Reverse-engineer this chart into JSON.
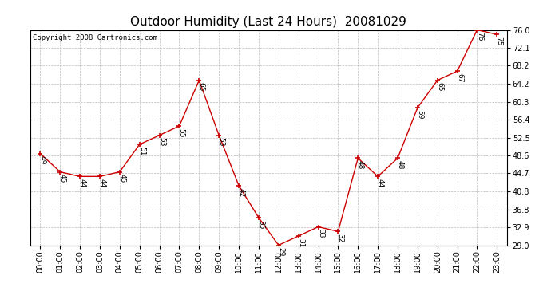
{
  "title": "Outdoor Humidity (Last 24 Hours)  20081029",
  "copyright": "Copyright 2008 Cartronics.com",
  "hours": [
    "00:00",
    "01:00",
    "02:00",
    "03:00",
    "04:00",
    "05:00",
    "06:00",
    "07:00",
    "08:00",
    "09:00",
    "10:00",
    "11:00",
    "12:00",
    "13:00",
    "14:00",
    "15:00",
    "16:00",
    "17:00",
    "18:00",
    "19:00",
    "20:00",
    "21:00",
    "22:00",
    "23:00"
  ],
  "values": [
    49,
    45,
    44,
    44,
    45,
    51,
    53,
    55,
    65,
    53,
    42,
    35,
    29,
    31,
    33,
    32,
    48,
    44,
    48,
    59,
    65,
    67,
    76,
    75
  ],
  "line_color": "#cc0000",
  "marker_color": "#cc0000",
  "background_color": "#ffffff",
  "grid_color": "#bbbbbb",
  "ylim_min": 29.0,
  "ylim_max": 76.0,
  "yticks": [
    29.0,
    32.9,
    36.8,
    40.8,
    44.7,
    48.6,
    52.5,
    56.4,
    60.3,
    64.2,
    68.2,
    72.1,
    76.0
  ],
  "title_fontsize": 11,
  "label_fontsize": 6.5,
  "tick_fontsize": 7,
  "copyright_fontsize": 6.5
}
